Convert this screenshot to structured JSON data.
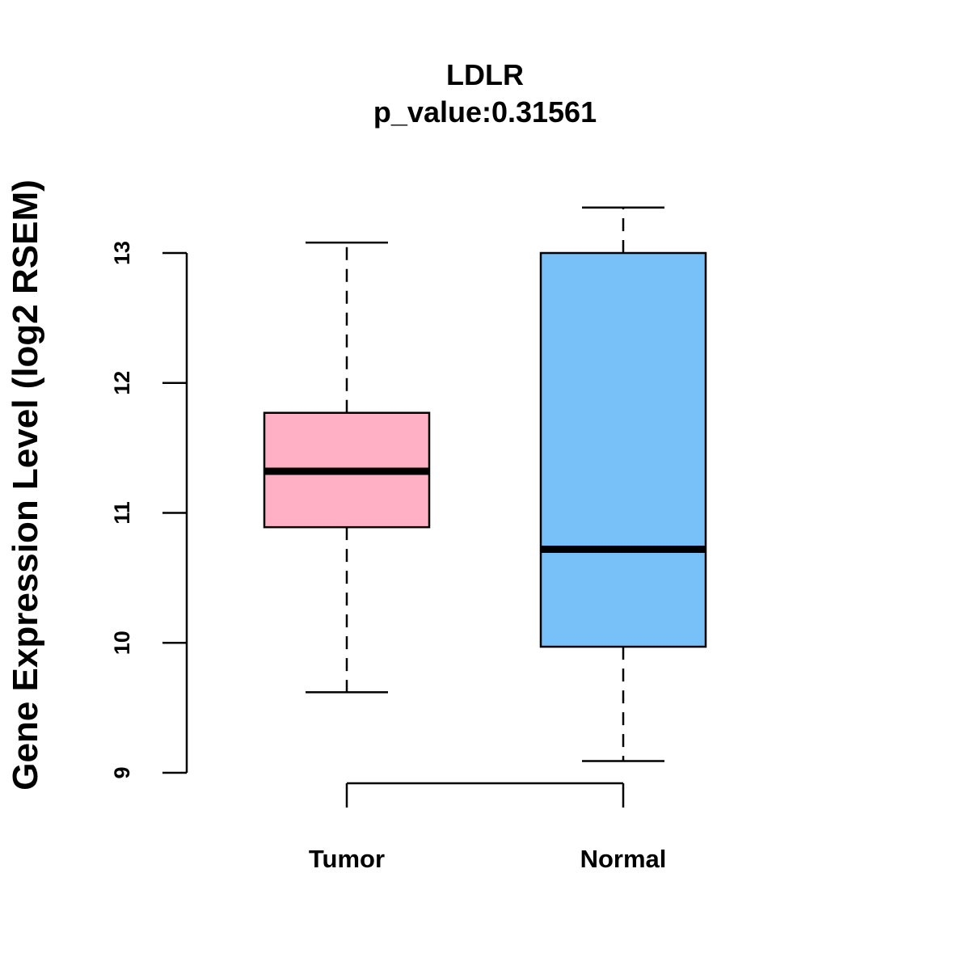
{
  "chart_data": {
    "type": "box",
    "title": "LDLR",
    "subtitle": "p_value:0.31561",
    "xlabel": "",
    "ylabel": "Gene Expression Level (log2 RSEM)",
    "ylim": [
      9,
      13
    ],
    "yticks": [
      9,
      10,
      11,
      12,
      13
    ],
    "ytick_labels": [
      "9",
      "10",
      "11",
      "12",
      "13"
    ],
    "grid": false,
    "legend": "none",
    "categories": [
      "Tumor",
      "Normal"
    ],
    "boxes": [
      {
        "label": "Tumor",
        "whisker_low": 9.62,
        "q1": 10.89,
        "median": 11.32,
        "q3": 11.77,
        "whisker_high": 13.08,
        "color": "#FFB0C4"
      },
      {
        "label": "Normal",
        "whisker_low": 9.09,
        "q1": 9.97,
        "median": 10.72,
        "q3": 13.0,
        "whisker_high": 13.35,
        "color": "#77C0F8"
      }
    ]
  }
}
